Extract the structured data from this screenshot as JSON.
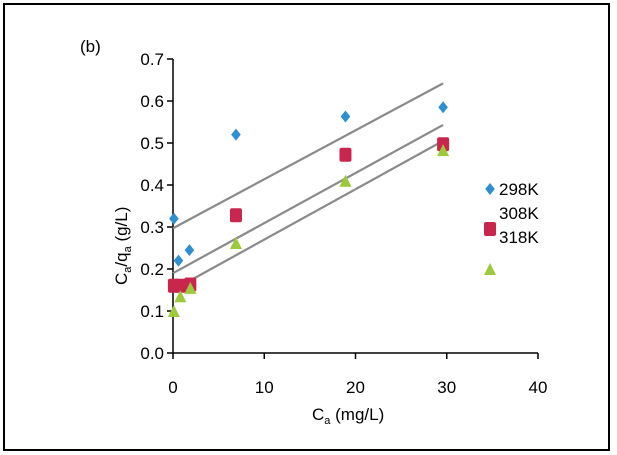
{
  "chart_data": {
    "type": "scatter",
    "panel_label": "(b)",
    "xlabel": {
      "main": "C",
      "sub": "a",
      "rest": " (mg/L)"
    },
    "ylabel": {
      "p1": "C",
      "s1": "a",
      "p2": "/q",
      "s2": "a",
      "p3": " (g/L)"
    },
    "xlim": [
      0,
      40
    ],
    "ylim": [
      0,
      0.7
    ],
    "xticks": [
      "0",
      "10",
      "20",
      "30",
      "40"
    ],
    "yticks": [
      "0.0",
      "0.1",
      "0.2",
      "0.3",
      "0.4",
      "0.5",
      "0.6",
      "0.7"
    ],
    "series": [
      {
        "name": "298K",
        "marker": "diamond",
        "color": "#2f8fd0",
        "points": [
          [
            0.1,
            0.32
          ],
          [
            0.6,
            0.22
          ],
          [
            1.8,
            0.245
          ],
          [
            6.9,
            0.52
          ],
          [
            18.9,
            0.563
          ],
          [
            29.6,
            0.585
          ]
        ],
        "fit": [
          [
            0,
            0.297
          ],
          [
            29.6,
            0.642
          ]
        ]
      },
      {
        "name": "308K",
        "marker": "square",
        "color": "#c8264d",
        "points": [
          [
            0.1,
            0.16
          ],
          [
            0.8,
            0.16
          ],
          [
            1.9,
            0.163
          ],
          [
            6.9,
            0.328
          ],
          [
            18.9,
            0.472
          ],
          [
            29.6,
            0.497
          ]
        ],
        "fit": [
          [
            0,
            0.19
          ],
          [
            29.6,
            0.543
          ]
        ]
      },
      {
        "name": "318K",
        "marker": "triangle",
        "color": "#9dc93a",
        "points": [
          [
            0.1,
            0.1
          ],
          [
            0.8,
            0.135
          ],
          [
            1.9,
            0.155
          ],
          [
            6.9,
            0.262
          ],
          [
            18.9,
            0.41
          ],
          [
            29.6,
            0.483
          ]
        ],
        "fit": [
          [
            0,
            0.15
          ],
          [
            29.6,
            0.505
          ]
        ]
      }
    ],
    "legend_position": "right",
    "fit_color": "#8a8a8a"
  }
}
